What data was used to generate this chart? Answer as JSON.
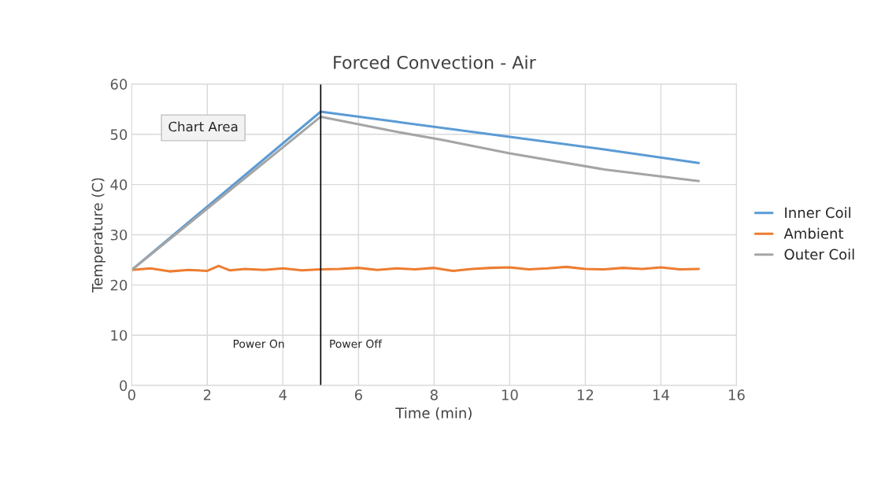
{
  "chart_data": {
    "type": "line",
    "title": "Forced Convection - Air",
    "xlabel": "Time (min)",
    "ylabel": "Temperature (C)",
    "xlim": [
      0,
      16
    ],
    "xticks": [
      0,
      2,
      4,
      6,
      8,
      10,
      12,
      14,
      16
    ],
    "ylim": [
      0,
      60
    ],
    "yticks": [
      0,
      10,
      20,
      30,
      40,
      50,
      60
    ],
    "grid": true,
    "legend": "right",
    "marker": "none",
    "line_style": "solid",
    "series": [
      {
        "name": "Inner Coil",
        "color": "#5b9bd5",
        "x": [
          0,
          5,
          7,
          10,
          12.5,
          15
        ],
        "values": [
          23,
          54.5,
          52.5,
          49.5,
          47,
          44.3
        ]
      },
      {
        "name": "Ambient",
        "color": "#ed7d31",
        "x": [
          0,
          0.5,
          1,
          1.5,
          2,
          2.3,
          2.6,
          3,
          3.5,
          4,
          4.5,
          5,
          5.5,
          6,
          6.5,
          7,
          7.5,
          8,
          8.5,
          9,
          9.5,
          10,
          10.5,
          11,
          11.5,
          12,
          12.5,
          13,
          13.5,
          14,
          14.5,
          15
        ],
        "values": [
          23,
          23.3,
          22.7,
          23,
          22.8,
          23.8,
          22.9,
          23.2,
          23,
          23.3,
          22.9,
          23.1,
          23.2,
          23.4,
          23,
          23.3,
          23.1,
          23.4,
          22.8,
          23.2,
          23.4,
          23.5,
          23.1,
          23.3,
          23.6,
          23.2,
          23.1,
          23.4,
          23.2,
          23.5,
          23.1,
          23.2
        ]
      },
      {
        "name": "Outer Coil",
        "color": "#a5a5a5",
        "x": [
          0,
          5,
          7,
          8.2,
          10,
          12.5,
          15
        ],
        "values": [
          23,
          53.5,
          50.5,
          48.9,
          46.2,
          43,
          40.7
        ]
      }
    ],
    "ref_lines": [
      {
        "axis": "x",
        "value": 5,
        "color": "#000000"
      }
    ],
    "annotations": [
      "Power On",
      "Power Off",
      "Chart Area"
    ]
  }
}
